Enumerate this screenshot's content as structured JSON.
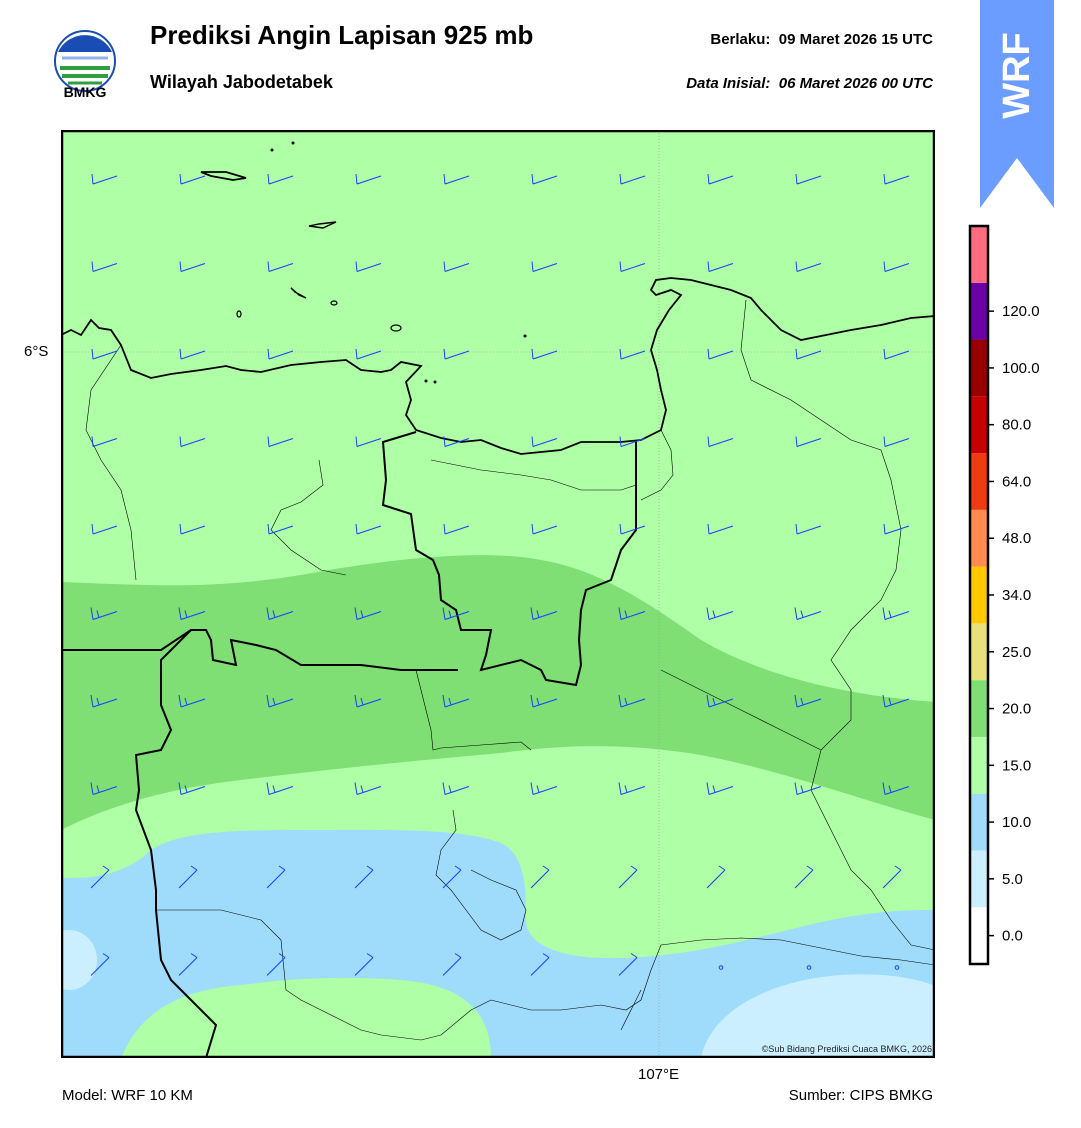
{
  "header": {
    "title": "Prediksi Angin Lapisan 925 mb",
    "subtitle": "Wilayah Jabodetabek",
    "valid_label": "Berlaku:",
    "valid_value": "09 Maret 2026 15 UTC",
    "init_label": "Data Inisial:",
    "init_value": "06 Maret 2026 00 UTC"
  },
  "logo": {
    "text": "BMKG"
  },
  "badge": {
    "text": "WRF",
    "color": "#6b9cff"
  },
  "map": {
    "lat_label": "6°S",
    "lon_label": "107°E",
    "copyright": "©Sub Bidang Prediksi Cuaca BMKG, 2026",
    "wind_barb_color": "#1a3fff"
  },
  "colorbar": {
    "labels": [
      "0.0",
      "5.0",
      "10.0",
      "15.0",
      "20.0",
      "25.0",
      "34.0",
      "48.0",
      "64.0",
      "80.0",
      "100.0",
      "120.0"
    ],
    "colors": [
      "#ffffff",
      "#ccefff",
      "#9fdcfb",
      "#aeffa6",
      "#7fde74",
      "#e8e07a",
      "#ffc800",
      "#ff8c4e",
      "#ef3a12",
      "#c60000",
      "#980000",
      "#6b00a6",
      "#ff6b7f"
    ]
  },
  "footer": {
    "model": "Model: WRF 10 KM",
    "source": "Sumber: CIPS BMKG"
  }
}
